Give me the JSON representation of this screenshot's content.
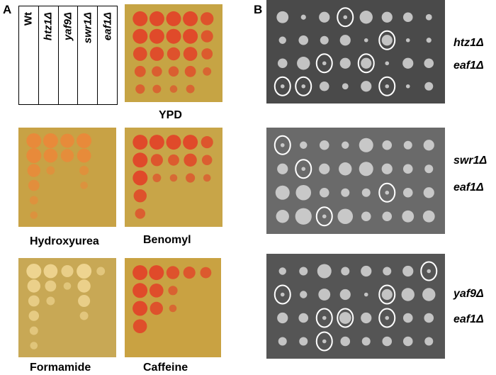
{
  "panel_a": {
    "letter": "A",
    "strains": [
      "Wt",
      "htz1Δ",
      "yaf9Δ",
      "swr1Δ",
      "eaf1Δ"
    ],
    "conditions": [
      "YPD",
      "Hydroxyurea",
      "Benomyl",
      "Formamide",
      "Caffeine"
    ]
  },
  "panel_b": {
    "letter": "B",
    "crosses": [
      {
        "gene1": "htz1Δ",
        "gene2": "eaf1Δ"
      },
      {
        "gene1": "swr1Δ",
        "gene2": "eaf1Δ"
      },
      {
        "gene1": "yaf9Δ",
        "gene2": "eaf1Δ"
      }
    ]
  },
  "colors": {
    "plate_bg": "#c9a548",
    "red_colony": "#e04a2a",
    "orange_colony": "#e88a3a",
    "tetrad_bg": "#5a5a5a",
    "tetrad_colony": "#d8d8d8",
    "circle": "#ffffff"
  }
}
